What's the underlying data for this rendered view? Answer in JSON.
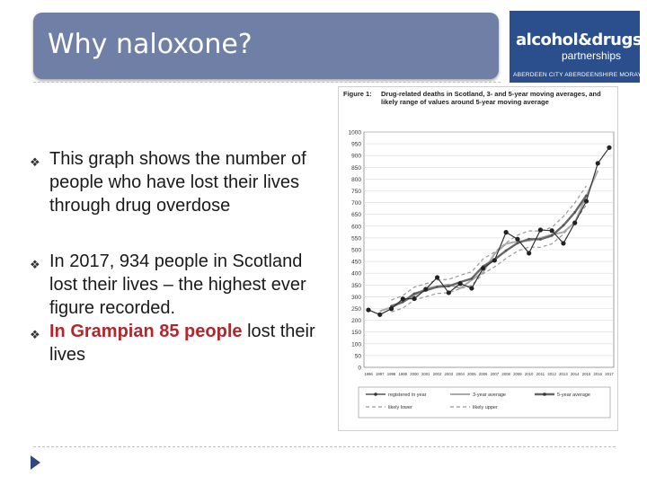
{
  "slide": {
    "title": "Why naloxone?"
  },
  "logo": {
    "line1": "alcohol&drugs",
    "line2": "partnerships",
    "line3": "ABERDEEN CITY  ABERDEENSHIRE  MORAY"
  },
  "bullets": [
    {
      "text": "This graph shows the number of people who have lost their lives through drug overdose"
    },
    {
      "text": "In 2017, 934 people in Scotland lost their lives – the highest ever figure recorded."
    },
    {
      "highlight": "In Grampian 85 people",
      "rest": " lost their lives"
    }
  ],
  "colors": {
    "title_bar": "#6f7fa6",
    "highlight": "#b3262b"
  },
  "chart_data": {
    "type": "line",
    "figure_label": "Figure 1:",
    "title": "Drug-related deaths in Scotland, 3- and 5-year moving averages, and likely range of values around 5-year moving average",
    "x": [
      1996,
      1997,
      1998,
      1999,
      2000,
      2001,
      2002,
      2003,
      2004,
      2005,
      2006,
      2007,
      2008,
      2009,
      2010,
      2011,
      2012,
      2013,
      2014,
      2015,
      2016,
      2017
    ],
    "xticks": [
      "1996",
      "1997",
      "1998",
      "1999",
      "2000",
      "2001",
      "2002",
      "2003",
      "2004",
      "2005",
      "2006",
      "2007",
      "2008",
      "2009",
      "2010",
      "2011",
      "2012",
      "2013",
      "2014",
      "2015",
      "2016",
      "2017"
    ],
    "ylim": [
      0,
      1000
    ],
    "yticks": [
      "0",
      "50",
      "100",
      "150",
      "200",
      "250",
      "300",
      "350",
      "400",
      "450",
      "500",
      "550",
      "600",
      "650",
      "700",
      "750",
      "800",
      "850",
      "900",
      "950",
      "1000"
    ],
    "grid": true,
    "legend_position": "bottom",
    "series": [
      {
        "name": "registered in year",
        "values": [
          244,
          224,
          249,
          291,
          292,
          332,
          382,
          317,
          356,
          336,
          421,
          455,
          574,
          545,
          485,
          584,
          581,
          527,
          614,
          706,
          867,
          934
        ]
      },
      {
        "name": "3-year average",
        "values": [
          null,
          239,
          255,
          277,
          305,
          335,
          344,
          352,
          336,
          371,
          404,
          483,
          525,
          535,
          538,
          550,
          564,
          574,
          616,
          729,
          836,
          null
        ]
      },
      {
        "name": "5-year average",
        "values": [
          null,
          null,
          260,
          278,
          313,
          327,
          342,
          345,
          362,
          377,
          429,
          458,
          496,
          528,
          545,
          544,
          560,
          603,
          659,
          730,
          null,
          null
        ]
      },
      {
        "name": "likely lower",
        "values": [
          null,
          null,
          235,
          252,
          286,
          300,
          314,
          317,
          334,
          349,
          398,
          427,
          463,
          494,
          511,
          510,
          525,
          566,
          620,
          690,
          null,
          null
        ]
      },
      {
        "name": "likely upper",
        "values": [
          null,
          null,
          286,
          305,
          341,
          355,
          371,
          374,
          391,
          406,
          461,
          490,
          529,
          562,
          580,
          579,
          595,
          641,
          699,
          771,
          null,
          null
        ]
      }
    ]
  }
}
